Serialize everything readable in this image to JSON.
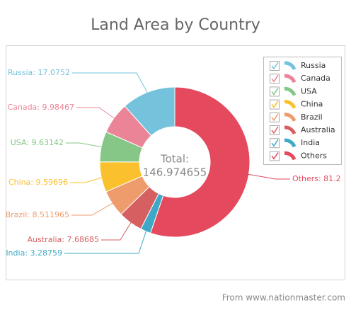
{
  "chart_data": {
    "type": "donut",
    "title": "Land Area by Country",
    "categories": [
      "Russia",
      "Canada",
      "USA",
      "China",
      "Brazil",
      "Australia",
      "India",
      "Others"
    ],
    "values": [
      17.0752,
      9.98467,
      9.63142,
      9.59696,
      8.511965,
      7.68685,
      3.28759,
      81.2
    ],
    "value_labels": [
      "Russia: 17.0752",
      "Canada: 9.98467",
      "USA: 9.63142",
      "China: 9.59696",
      "Brazil: 8.511965",
      "Australia: 7.68685",
      "India: 3.28759",
      "Others: 81.2"
    ],
    "colors": [
      "#74c2dc",
      "#ea8496",
      "#86c686",
      "#fbc02d",
      "#ee9c6c",
      "#d65f62",
      "#3fa8c6",
      "#e4495e"
    ],
    "center_label": "Total:",
    "total": "146.974655",
    "legend": "top-right",
    "source": "From www.nationmaster.com"
  }
}
